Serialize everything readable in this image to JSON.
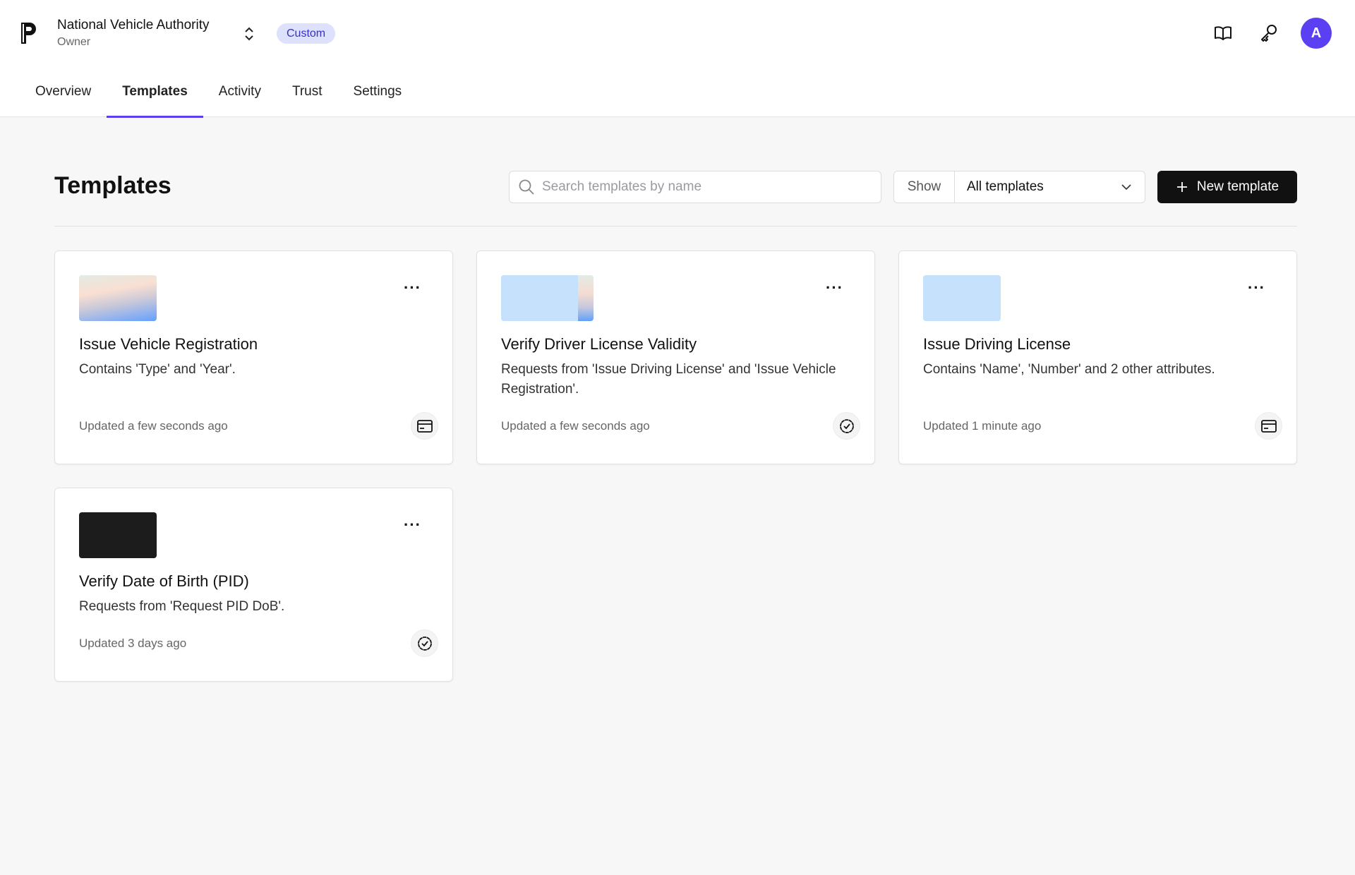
{
  "header": {
    "org_name": "National Vehicle Authority",
    "org_role": "Owner",
    "plan_badge": "Custom",
    "avatar_initial": "A",
    "accent": "#5b3ff2",
    "icons": [
      "book-icon",
      "key-icon"
    ]
  },
  "tabs": [
    {
      "label": "Overview"
    },
    {
      "label": "Templates",
      "active": true
    },
    {
      "label": "Activity"
    },
    {
      "label": "Trust"
    },
    {
      "label": "Settings"
    }
  ],
  "main": {
    "title": "Templates",
    "search_placeholder": "Search templates by name",
    "show_label": "Show",
    "show_value": "All templates",
    "new_button": "New template",
    "cards": [
      {
        "title": "Issue Vehicle Registration",
        "description": "Contains 'Type' and 'Year'.",
        "updated": "Updated a few seconds ago",
        "type_icon": "credential-card-icon"
      },
      {
        "title": "Verify Driver License Validity",
        "description": "Requests from 'Issue Driving License' and 'Issue Vehicle Registration'.",
        "updated": "Updated a few seconds ago",
        "type_icon": "verified-badge-icon"
      },
      {
        "title": "Issue Driving License",
        "description": "Contains 'Name', 'Number' and 2 other attributes.",
        "updated": "Updated 1 minute ago",
        "type_icon": "credential-card-icon"
      },
      {
        "title": "Verify Date of Birth (PID)",
        "description": "Requests from 'Request PID DoB'.",
        "updated": "Updated 3 days ago",
        "type_icon": "verified-badge-icon"
      }
    ]
  }
}
